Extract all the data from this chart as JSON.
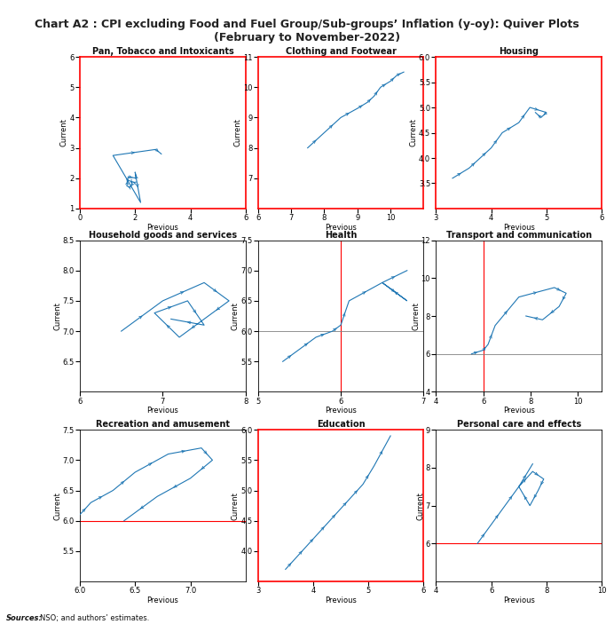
{
  "title": "Chart A2 : CPI excluding Food and Fuel Group/Sub-groups’ Inflation (y-oy): Quiver Plots\n(February to November-2022)",
  "source_text": "Sources: NSO; and authors’ estimates.",
  "subplots": [
    {
      "title": "Pan, Tobacco and Intoxicants",
      "xlim": [
        0,
        6
      ],
      "ylim": [
        1,
        6
      ],
      "xticks": [
        0,
        2,
        4,
        6
      ],
      "yticks": [
        1,
        2,
        3,
        4,
        5,
        6
      ],
      "xlabel": "Previous",
      "ylabel": "Current",
      "points": [
        2.0,
        1.8,
        1.9,
        1.8,
        1.7,
        1.75,
        2.0,
        2.0,
        2.2,
        1.25,
        2.7,
        2.95,
        3.0,
        2.8
      ],
      "x": [
        2.0,
        1.8,
        1.9,
        1.8,
        1.7,
        1.75,
        2.0,
        2.0,
        2.2,
        1.25,
        2.7,
        2.95,
        3.0
      ],
      "y": [
        1.8,
        1.9,
        1.8,
        1.7,
        1.75,
        2.0,
        2.0,
        2.2,
        1.25,
        2.7,
        2.95,
        3.0,
        2.8
      ],
      "red_vline": null,
      "red_hline": null,
      "gray_vline": null,
      "gray_hline": null,
      "border_color": "red"
    },
    {
      "title": "Clothing and Footwear",
      "xlim": [
        6,
        11
      ],
      "ylim": [
        6,
        11
      ],
      "xticks": [
        6,
        7,
        8,
        9,
        10
      ],
      "yticks": [
        7,
        8,
        9,
        10,
        11
      ],
      "xlabel": "Previous",
      "ylabel": "Current",
      "x": [
        7.5,
        8.0,
        8.5,
        9.0,
        9.5,
        10.0,
        10.2,
        10.3,
        10.5,
        10.3
      ],
      "y": [
        8.0,
        8.5,
        9.0,
        9.5,
        10.0,
        10.2,
        10.3,
        10.5,
        10.3,
        10.4
      ],
      "red_vline": null,
      "red_hline": null,
      "gray_vline": null,
      "gray_hline": null,
      "border_color": "red"
    },
    {
      "title": "Housing",
      "xlim": [
        3,
        6
      ],
      "ylim": [
        3,
        6
      ],
      "xticks": [
        3,
        4,
        5,
        6
      ],
      "yticks": [
        3.5,
        4.0,
        4.5,
        5.0,
        5.5,
        6.0
      ],
      "xlabel": "Previous",
      "ylabel": "Current",
      "x": [
        3.2,
        3.5,
        3.8,
        4.0,
        4.2,
        4.5,
        4.8,
        5.0,
        5.0,
        4.8
      ],
      "y": [
        3.5,
        3.8,
        4.0,
        4.2,
        4.5,
        4.8,
        5.0,
        5.0,
        4.8,
        4.9
      ],
      "red_vline": null,
      "red_hline": null,
      "gray_vline": null,
      "gray_hline": null,
      "border_color": "red"
    },
    {
      "title": "Household goods and services",
      "xlim": [
        6,
        8
      ],
      "ylim": [
        6,
        8.5
      ],
      "xticks": [
        6,
        7,
        8
      ],
      "yticks": [
        6.5,
        7.0,
        7.5,
        8.0,
        8.5
      ],
      "xlabel": "Previous",
      "ylabel": "Current",
      "x": [
        6.5,
        7.0,
        7.5,
        7.8,
        7.5,
        7.0,
        6.8,
        7.2,
        7.5,
        7.0
      ],
      "y": [
        7.0,
        7.5,
        7.8,
        7.5,
        7.0,
        6.8,
        7.2,
        7.5,
        7.0,
        7.3
      ],
      "red_vline": null,
      "red_hline": null,
      "gray_vline": null,
      "gray_hline": null,
      "border_color": null
    },
    {
      "title": "Health",
      "xlim": [
        5,
        7
      ],
      "ylim": [
        5,
        7.5
      ],
      "xticks": [
        5,
        6,
        7
      ],
      "yticks": [
        5.5,
        6.0,
        6.5,
        7.0,
        7.5
      ],
      "xlabel": "Previous",
      "ylabel": "Current",
      "x": [
        5.5,
        5.8,
        5.9,
        6.0,
        6.2,
        6.5,
        6.8,
        6.5,
        6.3,
        6.8
      ],
      "y": [
        5.8,
        5.9,
        6.0,
        6.2,
        6.5,
        6.8,
        6.5,
        6.3,
        6.8,
        7.0
      ],
      "red_vline": 6.0,
      "red_hline": null,
      "gray_vline": null,
      "gray_hline": 6.0,
      "border_color": null
    },
    {
      "title": "Transport and communication",
      "xlim": [
        4,
        11
      ],
      "ylim": [
        4,
        12
      ],
      "xticks": [
        4,
        6,
        8,
        10
      ],
      "yticks": [
        4,
        6,
        8,
        10,
        12
      ],
      "xlabel": "Previous",
      "ylabel": "Current",
      "x": [
        5.5,
        6.0,
        6.5,
        7.0,
        8.0,
        9.0,
        9.5,
        9.0,
        8.5,
        8.0
      ],
      "y": [
        6.0,
        6.5,
        7.0,
        8.0,
        9.0,
        9.5,
        9.0,
        8.5,
        8.0,
        8.5
      ],
      "red_vline": 6.0,
      "red_hline": null,
      "gray_vline": null,
      "gray_hline": 6.0,
      "border_color": null
    },
    {
      "title": "Recreation and amusement",
      "xlim": [
        6,
        7.5
      ],
      "ylim": [
        5,
        7.5
      ],
      "xticks": [
        6.0,
        6.5,
        7.0
      ],
      "yticks": [
        5.5,
        6.0,
        6.5,
        7.0,
        7.5
      ],
      "xlabel": "Previous",
      "ylabel": "Current",
      "x": [
        6.0,
        6.2,
        6.5,
        6.8,
        7.0,
        7.2,
        7.0,
        6.8,
        6.5,
        6.3
      ],
      "y": [
        6.2,
        6.5,
        6.8,
        7.0,
        7.2,
        7.0,
        6.8,
        6.5,
        6.3,
        6.0
      ],
      "red_vline": null,
      "red_hline": 6.0,
      "gray_vline": null,
      "gray_hline": null,
      "border_color": null
    },
    {
      "title": "Education",
      "xlim": [
        3,
        6
      ],
      "ylim": [
        3.5,
        6
      ],
      "xticks": [
        3,
        4,
        5,
        6
      ],
      "yticks": [
        4.0,
        4.5,
        5.0,
        5.5,
        6.0
      ],
      "xlabel": "Previous",
      "ylabel": "Current",
      "x": [
        3.5,
        3.8,
        4.0,
        4.2,
        4.5,
        4.8,
        5.0,
        5.2,
        5.5,
        5.8
      ],
      "y": [
        3.8,
        4.0,
        4.2,
        4.5,
        4.8,
        5.0,
        5.2,
        5.5,
        5.8,
        5.9
      ],
      "red_vline": null,
      "red_hline": null,
      "gray_vline": null,
      "gray_hline": null,
      "border_color": "red"
    },
    {
      "title": "Personal care and effects",
      "xlim": [
        4,
        10
      ],
      "ylim": [
        5,
        9
      ],
      "xticks": [
        4,
        6,
        8,
        10
      ],
      "yticks": [
        6,
        7,
        8,
        9
      ],
      "xlabel": "Previous",
      "ylabel": "Current",
      "x": [
        5.5,
        6.0,
        6.5,
        7.0,
        7.5,
        7.8,
        7.5,
        7.2,
        7.0,
        7.5
      ],
      "y": [
        6.0,
        6.5,
        7.0,
        7.5,
        7.8,
        7.5,
        7.2,
        7.0,
        7.5,
        8.0
      ],
      "red_vline": null,
      "red_hline": 6.0,
      "gray_vline": null,
      "gray_hline": null,
      "border_color": null
    }
  ],
  "line_color": "#1f77b4",
  "arrow_color": "#1f77b4",
  "red_line_color": "red",
  "gray_line_color": "gray",
  "title_fontsize": 11,
  "subtitle_fontsize": 11,
  "subplot_title_fontsize": 7,
  "axis_label_fontsize": 6,
  "tick_fontsize": 6
}
